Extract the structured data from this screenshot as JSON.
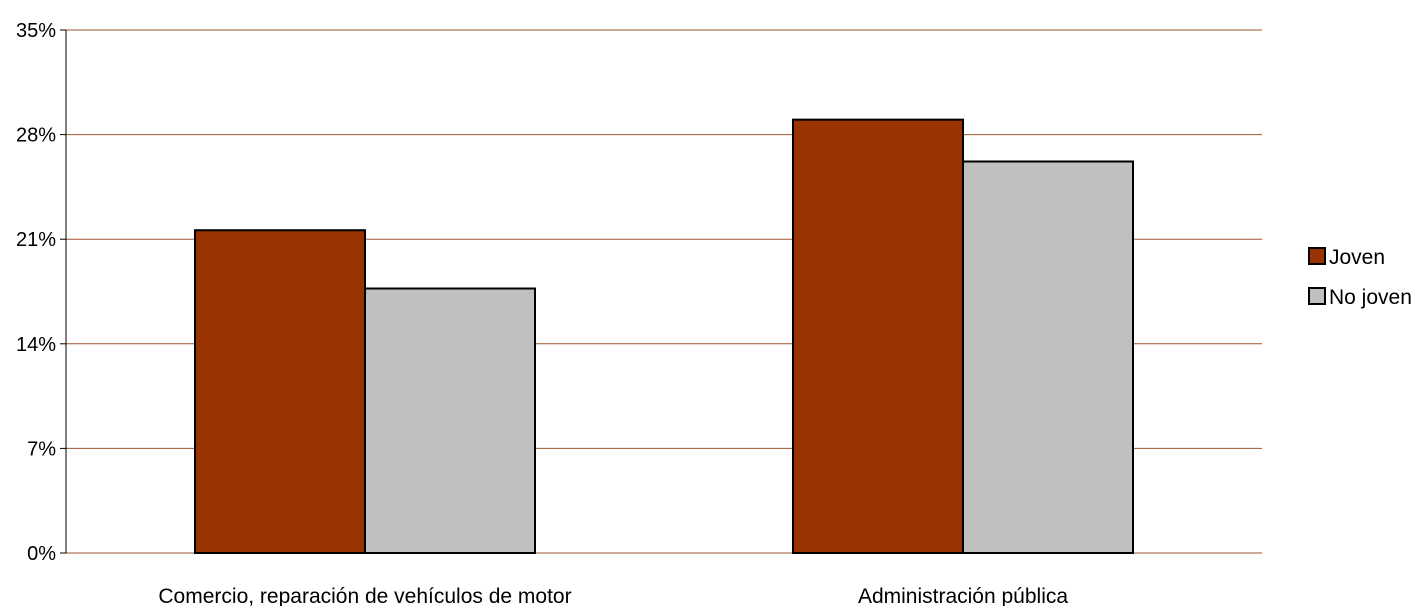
{
  "chart_data": {
    "type": "bar",
    "title": "",
    "xlabel": "",
    "ylabel": "",
    "categories": [
      "Comercio, reparación de vehículos de motor",
      "Administración pública"
    ],
    "series": [
      {
        "name": "Joven",
        "color": "#993300",
        "values": [
          21.6,
          29.0
        ]
      },
      {
        "name": "No joven",
        "color": "#C0C0C0",
        "values": [
          17.7,
          26.2
        ]
      }
    ],
    "ylim": [
      0,
      35
    ],
    "yticks": [
      0,
      7,
      14,
      21,
      28,
      35
    ],
    "ytick_labels": [
      "0%",
      "7%",
      "14%",
      "21%",
      "28%",
      "35%"
    ],
    "grid": true,
    "grid_color": "#A0522D",
    "legend_position": "right"
  }
}
